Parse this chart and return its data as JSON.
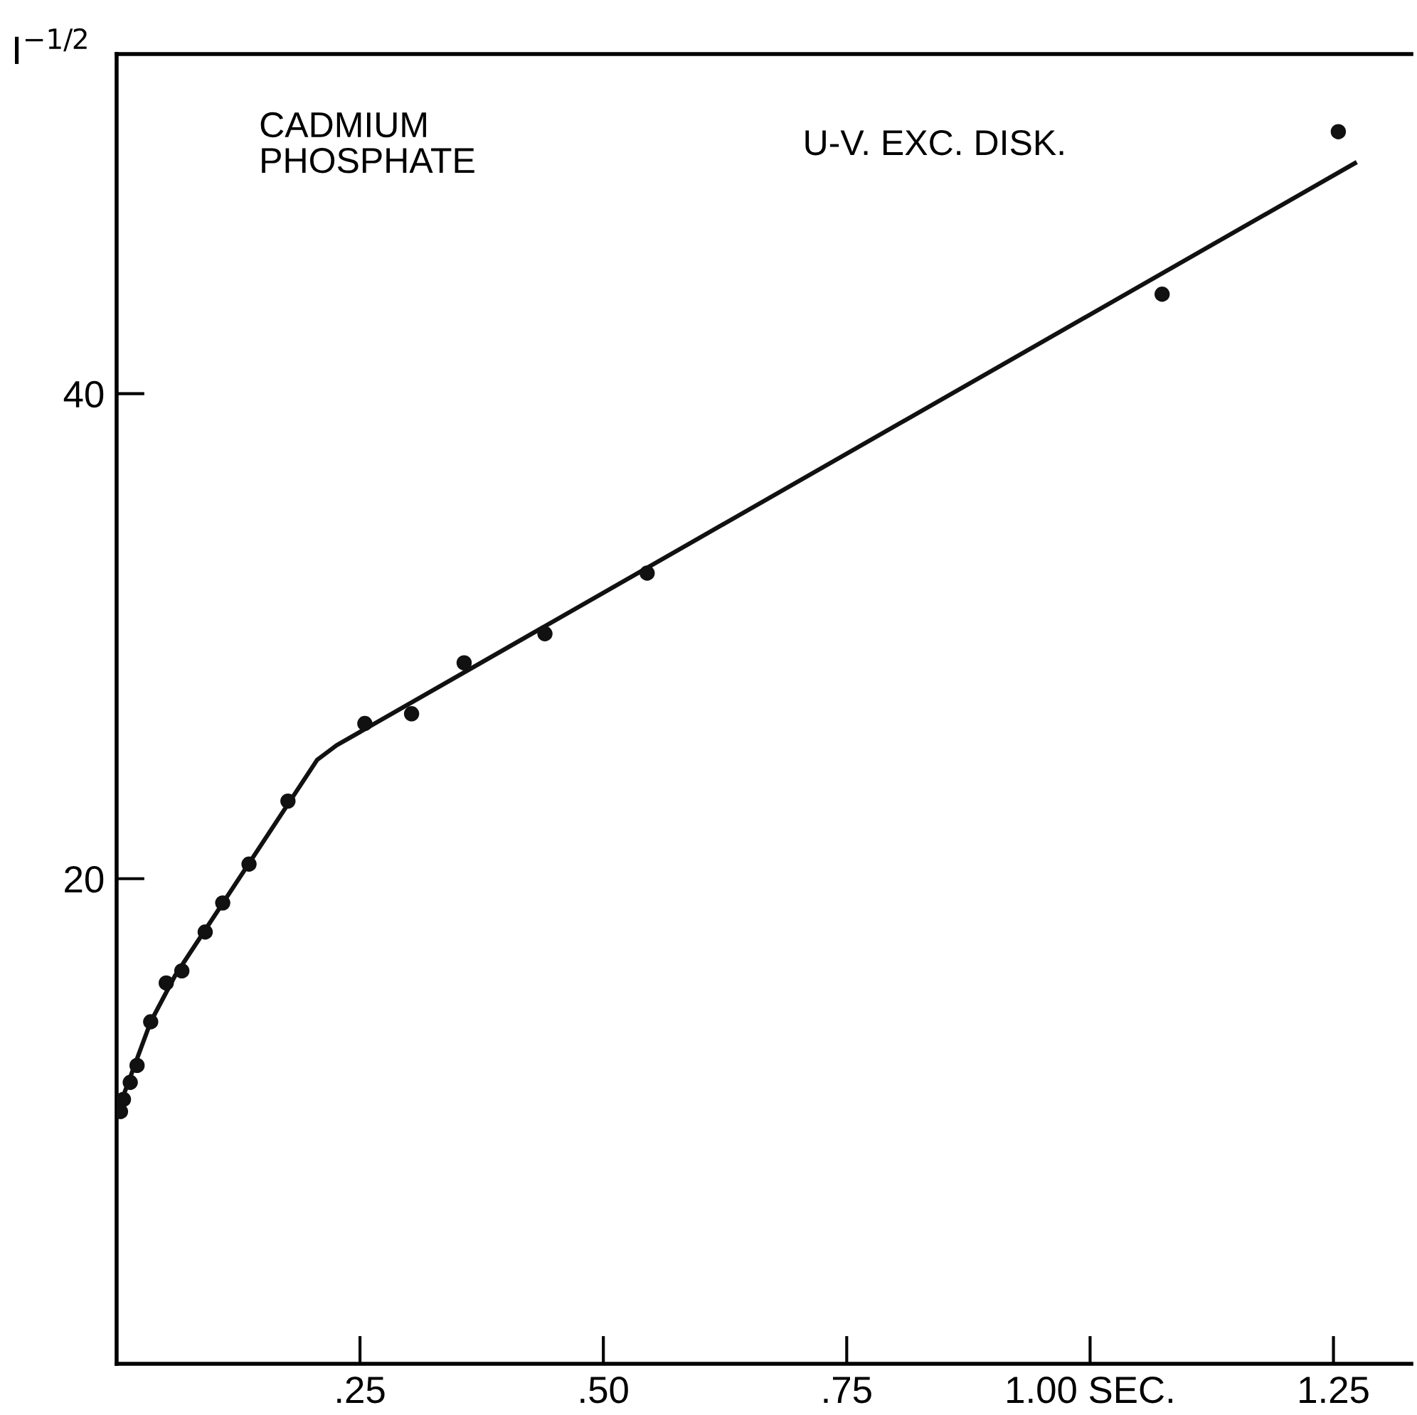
{
  "chart_data": {
    "type": "scatter",
    "ylabel": "I$^{−1/2}$",
    "annotations": [
      "CADMIUM\nPHOSPHATE",
      "U-V. EXC. DISK."
    ],
    "xlim": [
      0,
      1.33
    ],
    "ylim": [
      0,
      54
    ],
    "xticks": [
      {
        "value": 0.25,
        "label": ".25"
      },
      {
        "value": 0.5,
        "label": ".50"
      },
      {
        "value": 0.75,
        "label": ".75"
      },
      {
        "value": 1.0,
        "label": "1.00 SEC."
      },
      {
        "value": 1.25,
        "label": "1.25"
      }
    ],
    "yticks": [
      20,
      40
    ],
    "grid": false,
    "marker": "circle",
    "series": [
      {
        "color": "#111111",
        "x": [
          0.004,
          0.007,
          0.014,
          0.021,
          0.035,
          0.051,
          0.067,
          0.091,
          0.109,
          0.136,
          0.176,
          0.255,
          0.303,
          0.357,
          0.44,
          0.545,
          1.074,
          1.255
        ],
        "values": [
          10.4,
          10.9,
          11.6,
          12.3,
          14.1,
          15.7,
          16.2,
          17.8,
          19.0,
          20.6,
          23.2,
          26.4,
          26.8,
          28.9,
          30.1,
          32.6,
          44.1,
          50.8
        ]
      },
      {
        "type": "line",
        "color": "#111111",
        "line_style": "solid",
        "marker": "none",
        "x": [
          0,
          0.035,
          0.06,
          0.206,
          0.226,
          1.272
        ],
        "values": [
          10.3,
          14.1,
          16.0,
          24.9,
          25.5,
          49.5
        ]
      }
    ]
  }
}
